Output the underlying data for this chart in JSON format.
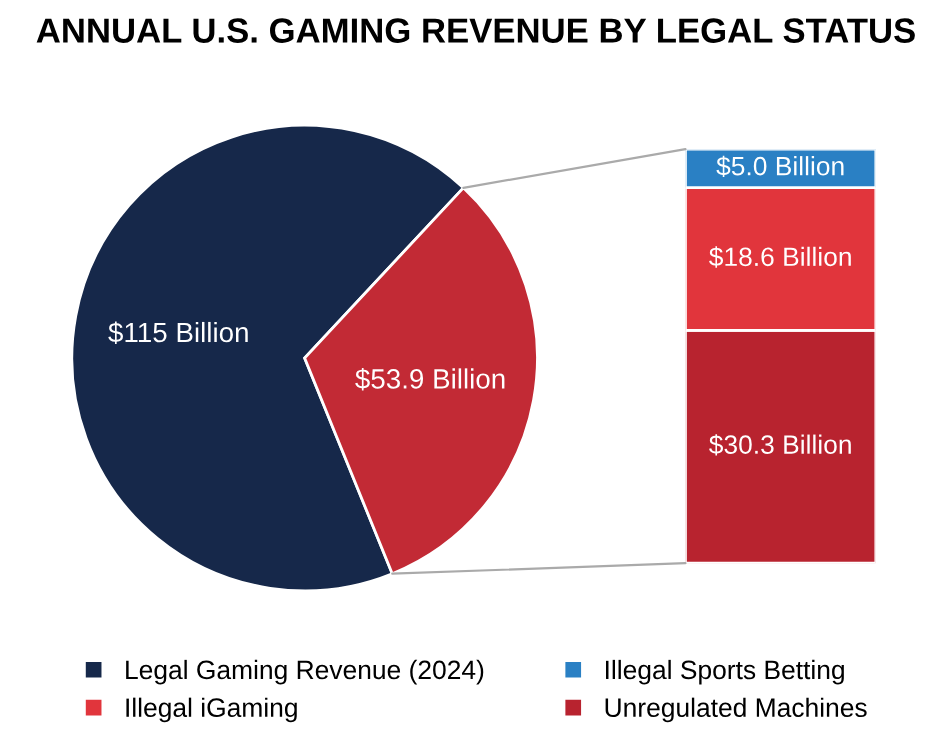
{
  "chart_data": [
    {
      "type": "pie",
      "title": "ANNUAL U.S. GAMING REVENUE BY LEGAL STATUS",
      "categories": [
        "Legal Gaming Revenue (2024)",
        null
      ],
      "values": [
        115,
        53.9
      ],
      "colors": [
        "#16284a",
        "#c22a35"
      ],
      "value_labels": [
        "$115 Billion",
        "$53.9 Billion"
      ],
      "legend": "bottom"
    },
    {
      "type": "bar",
      "stacked": true,
      "categories": [
        null
      ],
      "series": [
        {
          "name": "Unregulated Machines",
          "color": "#b8232f",
          "values": [
            30.3
          ],
          "value_labels": [
            "$30.3 Billion"
          ]
        },
        {
          "name": "Illegal iGaming",
          "color": "#e1353c",
          "values": [
            18.6
          ],
          "value_labels": [
            "$18.6 Billion"
          ]
        },
        {
          "name": "Illegal Sports Betting",
          "color": "#2a80c4",
          "values": [
            5.0
          ],
          "value_labels": [
            "$5.0 Billion"
          ]
        }
      ],
      "legend": "bottom"
    }
  ]
}
